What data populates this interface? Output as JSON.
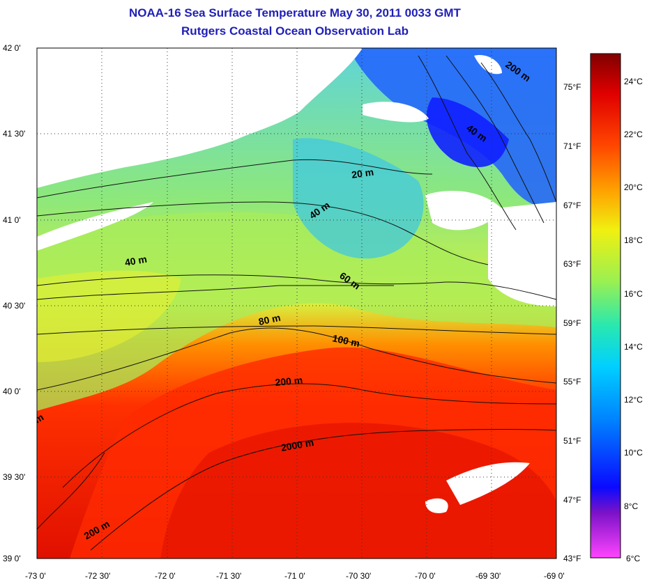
{
  "title": "NOAA-16 Sea Surface Temperature May 30, 2011 0033 GMT",
  "subtitle": "Rutgers Coastal Ocean Observation Lab",
  "lat_ticks": [
    "42 0'",
    "41 30'",
    "41 0'",
    "40 30'",
    "40 0'",
    "39 30'",
    "39 0'"
  ],
  "lon_ticks": [
    "-73 0'",
    "-72 30'",
    "-72 0'",
    "-71 30'",
    "-71 0'",
    "-70 30'",
    "-70 0'",
    "-69 30'",
    "-69 0'"
  ],
  "fahrenheit_ticks": [
    "75°F",
    "71°F",
    "67°F",
    "63°F",
    "59°F",
    "55°F",
    "51°F",
    "47°F",
    "43°F"
  ],
  "celsius_ticks": [
    "24°C",
    "22°C",
    "20°C",
    "18°C",
    "16°C",
    "14°C",
    "12°C",
    "10°C",
    "8°C",
    "6°C"
  ],
  "isobath_labels": [
    "20 m",
    "40 m",
    "40 m",
    "40 m",
    "60 m",
    "80 m",
    "100 m",
    "200 m",
    "2000 m",
    "200 m",
    "200 m",
    "m"
  ],
  "colorbar": {
    "min_c": 6,
    "max_c": 25,
    "colors": [
      "#ff44ff",
      "#7a12c8",
      "#0a0aff",
      "#0080ff",
      "#00d0ff",
      "#28e8b0",
      "#9cf050",
      "#f0f010",
      "#ffa000",
      "#ff4400",
      "#e00000",
      "#800000"
    ]
  }
}
